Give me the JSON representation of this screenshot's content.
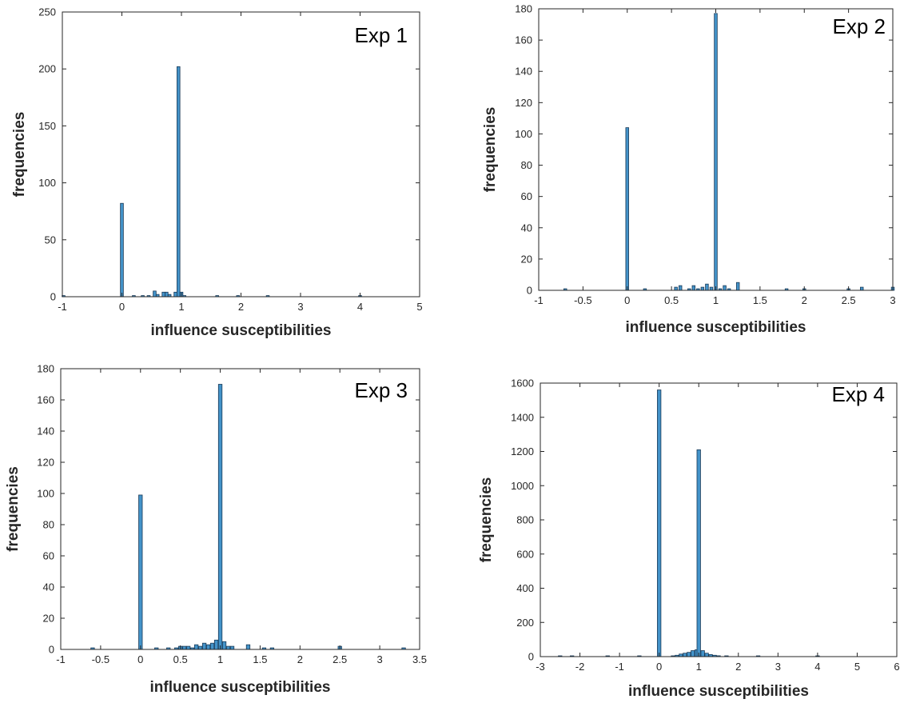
{
  "chart_data": [
    {
      "type": "bar",
      "title": "Exp 1",
      "xlabel": "influence susceptibilities",
      "ylabel": "frequencies",
      "xlim": [
        -1,
        5
      ],
      "ylim": [
        0,
        250
      ],
      "xticks": [
        -1,
        0,
        1,
        2,
        3,
        4,
        5
      ],
      "yticks": [
        0,
        50,
        100,
        150,
        200,
        250
      ],
      "bin_width": 0.05,
      "x": [
        -0.98,
        0,
        0.2,
        0.35,
        0.45,
        0.55,
        0.6,
        0.7,
        0.75,
        0.8,
        0.9,
        0.95,
        1.0,
        1.05,
        1.6,
        1.95,
        2.45,
        4.0
      ],
      "values": [
        1,
        82,
        1,
        1,
        1,
        5,
        2,
        4,
        4,
        2,
        4,
        202,
        4,
        1,
        1,
        1,
        1,
        1
      ],
      "grid": false
    },
    {
      "type": "bar",
      "title": "Exp 2",
      "xlabel": "influence susceptibilities",
      "ylabel": "frequencies",
      "xlim": [
        -1,
        3
      ],
      "ylim": [
        0,
        180
      ],
      "xticks": [
        -1,
        -0.5,
        0,
        0.5,
        1,
        1.5,
        2,
        2.5,
        3
      ],
      "yticks": [
        0,
        20,
        40,
        60,
        80,
        100,
        120,
        140,
        160,
        180
      ],
      "bin_width": 0.033,
      "x": [
        -0.7,
        0,
        0.2,
        0.55,
        0.6,
        0.7,
        0.75,
        0.8,
        0.85,
        0.9,
        0.95,
        1.0,
        1.05,
        1.1,
        1.15,
        1.25,
        1.8,
        2.0,
        2.5,
        2.65,
        3.0
      ],
      "values": [
        1,
        104,
        1,
        2,
        3,
        1,
        3,
        1,
        2,
        4,
        2,
        177,
        1,
        3,
        1,
        5,
        1,
        1,
        1,
        2,
        2
      ],
      "grid": false
    },
    {
      "type": "bar",
      "title": "Exp 3",
      "xlabel": "influence susceptibilities",
      "ylabel": "frequencies",
      "xlim": [
        -1,
        3.5
      ],
      "ylim": [
        0,
        180
      ],
      "xticks": [
        -1,
        -0.5,
        0,
        0.5,
        1,
        1.5,
        2,
        2.5,
        3,
        3.5
      ],
      "xtick_labels": [
        "-1",
        "-0.5",
        "0",
        "0.5",
        "1",
        "1.5",
        "2",
        "2.5",
        "3",
        "3.5"
      ],
      "yticks": [
        0,
        20,
        40,
        60,
        80,
        100,
        120,
        140,
        160,
        180
      ],
      "bin_width": 0.045,
      "x": [
        -0.6,
        0,
        0.2,
        0.35,
        0.45,
        0.5,
        0.55,
        0.6,
        0.65,
        0.7,
        0.75,
        0.8,
        0.85,
        0.9,
        0.95,
        1.0,
        1.05,
        1.1,
        1.15,
        1.35,
        1.55,
        1.65,
        2.5,
        3.3
      ],
      "values": [
        1,
        99,
        1,
        1,
        1,
        2,
        2,
        2,
        1,
        3,
        2,
        4,
        3,
        4,
        6,
        170,
        5,
        2,
        2,
        3,
        1,
        1,
        2,
        1
      ],
      "grid": false
    },
    {
      "type": "bar",
      "title": "Exp 4",
      "xlabel": "influence susceptibilities",
      "ylabel": "frequencies",
      "xlim": [
        -3,
        6
      ],
      "ylim": [
        0,
        1600
      ],
      "xticks": [
        -3,
        -2,
        -1,
        0,
        1,
        2,
        3,
        4,
        5,
        6
      ],
      "yticks": [
        0,
        200,
        400,
        600,
        800,
        1000,
        1200,
        1400,
        1600
      ],
      "bin_width": 0.09,
      "x": [
        -2.5,
        -2.2,
        -1.3,
        -0.5,
        0,
        0.35,
        0.45,
        0.55,
        0.65,
        0.75,
        0.85,
        0.95,
        1.0,
        1.1,
        1.2,
        1.3,
        1.4,
        1.5,
        1.7,
        2.5,
        4.0
      ],
      "values": [
        3,
        3,
        3,
        3,
        1560,
        3,
        8,
        15,
        20,
        25,
        35,
        40,
        1210,
        35,
        20,
        12,
        8,
        5,
        3,
        3,
        3
      ],
      "grid": false
    }
  ],
  "colors": {
    "bar_fill": "#4393c9",
    "bar_edge": "#1b3a57",
    "axis": "#262626"
  }
}
